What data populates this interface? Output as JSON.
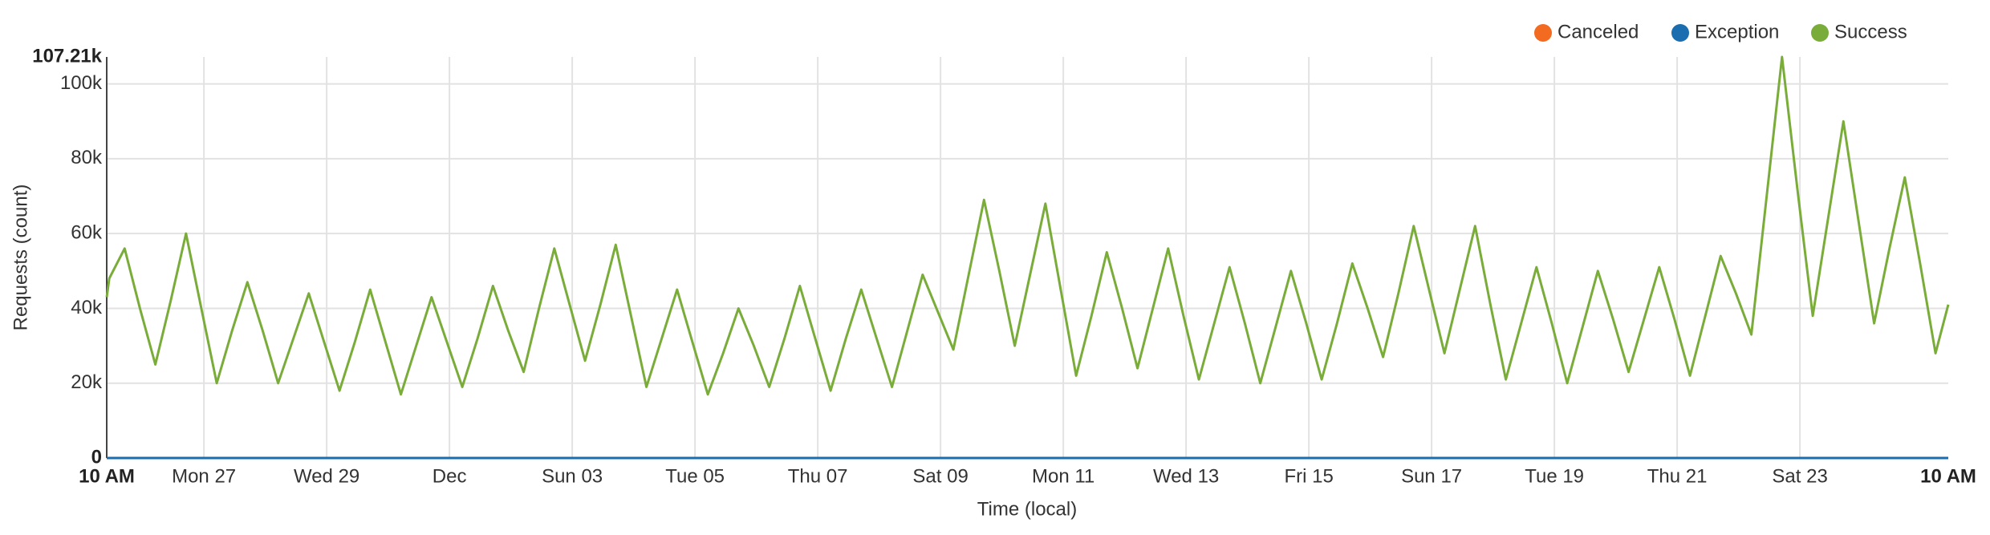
{
  "chart_data": {
    "type": "line",
    "y_label": "Requests (count)",
    "x_label": "Time (local)",
    "xlim": [
      0,
      720
    ],
    "xticks": [
      {
        "value": 0,
        "label": "10 AM"
      },
      {
        "value": 38,
        "label": "Mon 27"
      },
      {
        "value": 86,
        "label": "Wed 29"
      },
      {
        "value": 134,
        "label": "Dec"
      },
      {
        "value": 182,
        "label": "Sun 03"
      },
      {
        "value": 230,
        "label": "Tue 05"
      },
      {
        "value": 278,
        "label": "Thu 07"
      },
      {
        "value": 326,
        "label": "Sat 09"
      },
      {
        "value": 374,
        "label": "Mon 11"
      },
      {
        "value": 422,
        "label": "Wed 13"
      },
      {
        "value": 470,
        "label": "Fri 15"
      },
      {
        "value": 518,
        "label": "Sun 17"
      },
      {
        "value": 566,
        "label": "Tue 19"
      },
      {
        "value": 614,
        "label": "Thu 21"
      },
      {
        "value": 662,
        "label": "Sat 23"
      },
      {
        "value": 720,
        "label": "10 AM"
      }
    ],
    "ylim": [
      0,
      107210
    ],
    "yticks": [
      0,
      {
        "value": 20000,
        "label": "20k"
      },
      {
        "value": 40000,
        "label": "40k"
      },
      {
        "value": 60000,
        "label": "60k"
      },
      {
        "value": 80000,
        "label": "80k"
      },
      {
        "value": 100000,
        "label": "100k"
      },
      {
        "value": 107210,
        "label": "107.21k"
      }
    ],
    "grid": true,
    "legend": "top-right",
    "series": [
      {
        "name": "Canceled",
        "color": "#f26b21",
        "x": [
          0,
          720
        ],
        "values": [
          0,
          0
        ]
      },
      {
        "name": "Exception",
        "color": "#1a6eb0",
        "x": [
          0,
          720
        ],
        "values": [
          0,
          0
        ]
      },
      {
        "name": "Success",
        "color": "#7aac3a",
        "x": [
          0,
          1,
          7,
          13,
          19,
          25,
          31,
          37,
          43,
          49,
          55,
          61,
          67,
          73,
          79,
          85,
          91,
          97,
          103,
          109,
          115,
          121,
          127,
          133,
          139,
          145,
          151,
          157,
          163,
          169,
          175,
          181,
          187,
          193,
          199,
          205,
          211,
          217,
          223,
          229,
          235,
          241,
          247,
          253,
          259,
          265,
          271,
          277,
          283,
          289,
          295,
          301,
          307,
          313,
          319,
          325,
          331,
          337,
          343,
          349,
          355,
          361,
          367,
          373,
          379,
          385,
          391,
          397,
          403,
          409,
          415,
          421,
          427,
          433,
          439,
          445,
          451,
          457,
          463,
          469,
          475,
          481,
          487,
          493,
          499,
          505,
          511,
          517,
          523,
          529,
          535,
          541,
          547,
          553,
          559,
          565,
          571,
          577,
          583,
          589,
          595,
          601,
          607,
          613,
          619,
          625,
          631,
          637,
          643,
          649,
          655,
          661,
          667,
          673,
          679,
          685,
          691,
          697,
          703,
          709,
          715,
          720
        ],
        "values": [
          43000,
          48000,
          56000,
          40000,
          25000,
          42000,
          60000,
          40000,
          20000,
          34000,
          47000,
          34000,
          20000,
          32000,
          44000,
          31000,
          18000,
          31000,
          45000,
          31000,
          17000,
          30000,
          43000,
          31000,
          19000,
          32000,
          46000,
          34000,
          23000,
          40000,
          56000,
          41000,
          26000,
          41000,
          57000,
          38000,
          19000,
          32000,
          45000,
          31000,
          17000,
          28000,
          40000,
          30000,
          19000,
          32000,
          46000,
          32000,
          18000,
          32000,
          45000,
          32000,
          19000,
          34000,
          49000,
          39000,
          29000,
          49000,
          69000,
          50000,
          30000,
          49000,
          68000,
          45000,
          22000,
          38000,
          55000,
          40000,
          24000,
          40000,
          56000,
          38000,
          21000,
          36000,
          51000,
          36000,
          20000,
          35000,
          50000,
          36000,
          21000,
          36000,
          52000,
          40000,
          27000,
          44000,
          62000,
          45000,
          28000,
          45000,
          62000,
          41000,
          21000,
          36000,
          51000,
          36000,
          20000,
          35000,
          50000,
          37000,
          23000,
          37000,
          51000,
          37000,
          22000,
          38000,
          54000,
          44000,
          33000,
          70000,
          107210,
          72000,
          38000,
          64000,
          90000,
          63000,
          36000,
          56000,
          75000,
          52000,
          28000,
          41000
        ]
      }
    ]
  }
}
